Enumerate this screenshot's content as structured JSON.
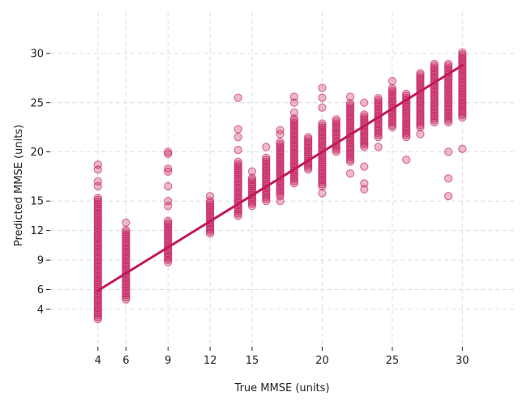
{
  "chart_data": {
    "type": "scatter",
    "title": "",
    "xlabel": "True MMSE (units)",
    "ylabel": "Predicted MMSE (units)",
    "xlim": [
      0.6,
      33.8
    ],
    "ylim": [
      0.2,
      34.2
    ],
    "xticks": [
      4,
      6,
      9,
      12,
      15,
      20,
      25,
      30
    ],
    "yticks": [
      4,
      6,
      9,
      12,
      15,
      20,
      25,
      30
    ],
    "grid": true,
    "point_color": "#C2185B",
    "line_color": "#C2185B",
    "series": [
      {
        "kind": "scatter",
        "clusters": [
          {
            "x": 4,
            "ymin": 3.0,
            "ymax": 15.5,
            "outliers": [
              16.5,
              17.0,
              18.2,
              18.7
            ]
          },
          {
            "x": 6,
            "ymin": 5.0,
            "ymax": 12.2,
            "outliers": [
              12.8
            ]
          },
          {
            "x": 9,
            "ymin": 8.8,
            "ymax": 13.0,
            "outliers": [
              14.5,
              15.0,
              16.5,
              18.0,
              18.3,
              19.8,
              20.0
            ]
          },
          {
            "x": 12,
            "ymin": 11.7,
            "ymax": 15.0,
            "outliers": [
              15.5
            ]
          },
          {
            "x": 14,
            "ymin": 13.5,
            "ymax": 19.0,
            "outliers": [
              20.2,
              21.5,
              22.3,
              25.5
            ]
          },
          {
            "x": 15,
            "ymin": 14.5,
            "ymax": 17.5,
            "outliers": [
              18.0
            ]
          },
          {
            "x": 16,
            "ymin": 15.0,
            "ymax": 19.5,
            "outliers": [
              20.5
            ]
          },
          {
            "x": 17,
            "ymin": 15.5,
            "ymax": 21.0,
            "outliers": [
              15.0,
              21.8,
              22.2
            ]
          },
          {
            "x": 18,
            "ymin": 16.8,
            "ymax": 23.5,
            "outliers": [
              24.0,
              25.0,
              25.6
            ]
          },
          {
            "x": 19,
            "ymin": 18.2,
            "ymax": 21.5,
            "outliers": []
          },
          {
            "x": 20,
            "ymin": 16.5,
            "ymax": 23.0,
            "outliers": [
              15.8,
              24.5,
              25.5,
              26.5
            ]
          },
          {
            "x": 21,
            "ymin": 20.0,
            "ymax": 23.5,
            "outliers": []
          },
          {
            "x": 22,
            "ymin": 19.0,
            "ymax": 25.0,
            "outliers": [
              17.8,
              25.6
            ]
          },
          {
            "x": 23,
            "ymin": 20.5,
            "ymax": 24.0,
            "outliers": [
              16.2,
              16.8,
              18.5,
              25.0
            ]
          },
          {
            "x": 24,
            "ymin": 21.5,
            "ymax": 25.5,
            "outliers": [
              20.5
            ]
          },
          {
            "x": 25,
            "ymin": 22.5,
            "ymax": 26.5,
            "outliers": [
              27.2
            ]
          },
          {
            "x": 26,
            "ymin": 21.5,
            "ymax": 26.0,
            "outliers": [
              19.2
            ]
          },
          {
            "x": 27,
            "ymin": 22.5,
            "ymax": 28.0,
            "outliers": [
              21.8
            ]
          },
          {
            "x": 28,
            "ymin": 23.0,
            "ymax": 29.0,
            "outliers": []
          },
          {
            "x": 29,
            "ymin": 23.0,
            "ymax": 29.0,
            "outliers": [
              15.5,
              17.3,
              20.0
            ]
          },
          {
            "x": 30,
            "ymin": 23.5,
            "ymax": 30.3,
            "outliers": [
              20.3
            ]
          }
        ]
      },
      {
        "kind": "line",
        "x": [
          4,
          30
        ],
        "y": [
          5.9,
          28.8
        ]
      }
    ]
  }
}
